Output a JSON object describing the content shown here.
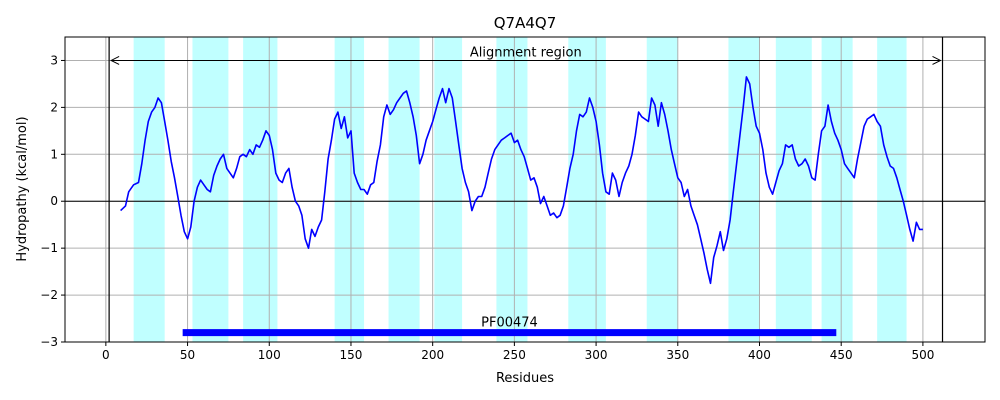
{
  "chart_data": {
    "type": "line",
    "title": "Q7A4Q7",
    "xlabel": "Residues",
    "ylabel": "Hydropathy (kcal/mol)",
    "xlim": [
      -25,
      538
    ],
    "ylim": [
      -3,
      3.5
    ],
    "xticks": [
      0,
      50,
      100,
      150,
      200,
      250,
      300,
      350,
      400,
      450,
      500
    ],
    "yticks": [
      -3,
      -2,
      -1,
      0,
      1,
      2,
      3
    ],
    "grid": true,
    "colors": {
      "line": "#0000ff",
      "tm_band": "#c0ffff",
      "domain_bar": "#0000ff",
      "grid": "#b0b0b0",
      "axis": "#000000"
    },
    "transmembrane_regions": [
      [
        17,
        36
      ],
      [
        53,
        75
      ],
      [
        84,
        105
      ],
      [
        140,
        158
      ],
      [
        173,
        192
      ],
      [
        201,
        218
      ],
      [
        239,
        258
      ],
      [
        283,
        306
      ],
      [
        331,
        350
      ],
      [
        381,
        400
      ],
      [
        410,
        432
      ],
      [
        438,
        457
      ],
      [
        472,
        490
      ]
    ],
    "alignment_region": {
      "label": "Alignment region",
      "start": 2,
      "end": 512
    },
    "domain": {
      "label": "PF00474",
      "start": 47,
      "end": 447,
      "y": -2.8
    },
    "series": [
      {
        "points": [
          [
            9,
            -0.2
          ],
          [
            12,
            -0.1
          ],
          [
            14,
            0.2
          ],
          [
            17,
            0.35
          ],
          [
            20,
            0.4
          ],
          [
            22,
            0.8
          ],
          [
            24,
            1.3
          ],
          [
            26,
            1.7
          ],
          [
            28,
            1.9
          ],
          [
            30,
            2.0
          ],
          [
            32,
            2.2
          ],
          [
            34,
            2.1
          ],
          [
            36,
            1.7
          ],
          [
            38,
            1.3
          ],
          [
            40,
            0.85
          ],
          [
            42,
            0.5
          ],
          [
            44,
            0.1
          ],
          [
            46,
            -0.3
          ],
          [
            48,
            -0.65
          ],
          [
            50,
            -0.8
          ],
          [
            52,
            -0.55
          ],
          [
            54,
            0.0
          ],
          [
            56,
            0.3
          ],
          [
            58,
            0.45
          ],
          [
            60,
            0.35
          ],
          [
            62,
            0.25
          ],
          [
            64,
            0.2
          ],
          [
            66,
            0.55
          ],
          [
            68,
            0.75
          ],
          [
            70,
            0.9
          ],
          [
            72,
            1.0
          ],
          [
            74,
            0.7
          ],
          [
            76,
            0.6
          ],
          [
            78,
            0.5
          ],
          [
            80,
            0.7
          ],
          [
            82,
            0.95
          ],
          [
            84,
            1.0
          ],
          [
            86,
            0.95
          ],
          [
            88,
            1.1
          ],
          [
            90,
            1.0
          ],
          [
            92,
            1.2
          ],
          [
            94,
            1.15
          ],
          [
            96,
            1.3
          ],
          [
            98,
            1.5
          ],
          [
            100,
            1.4
          ],
          [
            102,
            1.1
          ],
          [
            104,
            0.6
          ],
          [
            106,
            0.45
          ],
          [
            108,
            0.4
          ],
          [
            110,
            0.6
          ],
          [
            112,
            0.7
          ],
          [
            114,
            0.3
          ],
          [
            116,
            0.0
          ],
          [
            118,
            -0.1
          ],
          [
            120,
            -0.3
          ],
          [
            122,
            -0.8
          ],
          [
            124,
            -1.0
          ],
          [
            126,
            -0.6
          ],
          [
            128,
            -0.75
          ],
          [
            130,
            -0.55
          ],
          [
            132,
            -0.4
          ],
          [
            134,
            0.2
          ],
          [
            136,
            0.9
          ],
          [
            138,
            1.3
          ],
          [
            140,
            1.75
          ],
          [
            142,
            1.9
          ],
          [
            144,
            1.55
          ],
          [
            146,
            1.8
          ],
          [
            148,
            1.35
          ],
          [
            150,
            1.5
          ],
          [
            152,
            0.6
          ],
          [
            154,
            0.4
          ],
          [
            156,
            0.25
          ],
          [
            158,
            0.25
          ],
          [
            160,
            0.15
          ],
          [
            162,
            0.35
          ],
          [
            164,
            0.4
          ],
          [
            166,
            0.85
          ],
          [
            168,
            1.2
          ],
          [
            170,
            1.8
          ],
          [
            172,
            2.05
          ],
          [
            174,
            1.85
          ],
          [
            176,
            1.95
          ],
          [
            178,
            2.1
          ],
          [
            180,
            2.2
          ],
          [
            182,
            2.3
          ],
          [
            184,
            2.35
          ],
          [
            186,
            2.1
          ],
          [
            188,
            1.8
          ],
          [
            190,
            1.4
          ],
          [
            192,
            0.8
          ],
          [
            194,
            1.0
          ],
          [
            196,
            1.3
          ],
          [
            198,
            1.5
          ],
          [
            200,
            1.7
          ],
          [
            202,
            1.95
          ],
          [
            204,
            2.2
          ],
          [
            206,
            2.4
          ],
          [
            208,
            2.1
          ],
          [
            210,
            2.4
          ],
          [
            212,
            2.2
          ],
          [
            214,
            1.7
          ],
          [
            216,
            1.2
          ],
          [
            218,
            0.7
          ],
          [
            220,
            0.4
          ],
          [
            222,
            0.2
          ],
          [
            224,
            -0.2
          ],
          [
            226,
            0.0
          ],
          [
            228,
            0.1
          ],
          [
            230,
            0.1
          ],
          [
            232,
            0.3
          ],
          [
            234,
            0.6
          ],
          [
            236,
            0.9
          ],
          [
            238,
            1.1
          ],
          [
            240,
            1.2
          ],
          [
            242,
            1.3
          ],
          [
            244,
            1.35
          ],
          [
            246,
            1.4
          ],
          [
            248,
            1.45
          ],
          [
            250,
            1.25
          ],
          [
            252,
            1.3
          ],
          [
            254,
            1.1
          ],
          [
            256,
            0.95
          ],
          [
            258,
            0.7
          ],
          [
            260,
            0.45
          ],
          [
            262,
            0.5
          ],
          [
            264,
            0.3
          ],
          [
            266,
            -0.05
          ],
          [
            268,
            0.1
          ],
          [
            270,
            -0.1
          ],
          [
            272,
            -0.3
          ],
          [
            274,
            -0.25
          ],
          [
            276,
            -0.35
          ],
          [
            278,
            -0.3
          ],
          [
            280,
            -0.1
          ],
          [
            282,
            0.3
          ],
          [
            284,
            0.7
          ],
          [
            286,
            1.0
          ],
          [
            288,
            1.5
          ],
          [
            290,
            1.85
          ],
          [
            292,
            1.8
          ],
          [
            294,
            1.9
          ],
          [
            296,
            2.2
          ],
          [
            298,
            2.0
          ],
          [
            300,
            1.7
          ],
          [
            302,
            1.2
          ],
          [
            304,
            0.6
          ],
          [
            306,
            0.2
          ],
          [
            308,
            0.15
          ],
          [
            310,
            0.6
          ],
          [
            312,
            0.45
          ],
          [
            314,
            0.1
          ],
          [
            316,
            0.4
          ],
          [
            318,
            0.6
          ],
          [
            320,
            0.75
          ],
          [
            322,
            1.0
          ],
          [
            324,
            1.4
          ],
          [
            326,
            1.9
          ],
          [
            328,
            1.8
          ],
          [
            330,
            1.75
          ],
          [
            332,
            1.7
          ],
          [
            334,
            2.2
          ],
          [
            336,
            2.05
          ],
          [
            338,
            1.6
          ],
          [
            340,
            2.1
          ],
          [
            342,
            1.85
          ],
          [
            344,
            1.5
          ],
          [
            346,
            1.1
          ],
          [
            348,
            0.8
          ],
          [
            350,
            0.5
          ],
          [
            352,
            0.4
          ],
          [
            354,
            0.1
          ],
          [
            356,
            0.25
          ],
          [
            358,
            -0.1
          ],
          [
            360,
            -0.3
          ],
          [
            362,
            -0.5
          ],
          [
            364,
            -0.8
          ],
          [
            366,
            -1.1
          ],
          [
            368,
            -1.45
          ],
          [
            370,
            -1.75
          ],
          [
            372,
            -1.2
          ],
          [
            374,
            -0.95
          ],
          [
            376,
            -0.65
          ],
          [
            378,
            -1.05
          ],
          [
            380,
            -0.8
          ],
          [
            382,
            -0.4
          ],
          [
            384,
            0.2
          ],
          [
            386,
            0.8
          ],
          [
            388,
            1.4
          ],
          [
            390,
            2.0
          ],
          [
            392,
            2.65
          ],
          [
            394,
            2.5
          ],
          [
            396,
            2.0
          ],
          [
            398,
            1.6
          ],
          [
            400,
            1.45
          ],
          [
            402,
            1.1
          ],
          [
            404,
            0.6
          ],
          [
            406,
            0.3
          ],
          [
            408,
            0.15
          ],
          [
            410,
            0.4
          ],
          [
            412,
            0.65
          ],
          [
            414,
            0.8
          ],
          [
            416,
            1.2
          ],
          [
            418,
            1.15
          ],
          [
            420,
            1.2
          ],
          [
            422,
            0.9
          ],
          [
            424,
            0.75
          ],
          [
            426,
            0.8
          ],
          [
            428,
            0.9
          ],
          [
            430,
            0.75
          ],
          [
            432,
            0.5
          ],
          [
            434,
            0.45
          ],
          [
            436,
            1.0
          ],
          [
            438,
            1.5
          ],
          [
            440,
            1.6
          ],
          [
            442,
            2.05
          ],
          [
            444,
            1.7
          ],
          [
            446,
            1.45
          ],
          [
            448,
            1.3
          ],
          [
            450,
            1.1
          ],
          [
            452,
            0.8
          ],
          [
            454,
            0.7
          ],
          [
            456,
            0.6
          ],
          [
            458,
            0.5
          ],
          [
            460,
            0.9
          ],
          [
            462,
            1.25
          ],
          [
            464,
            1.6
          ],
          [
            466,
            1.75
          ],
          [
            468,
            1.8
          ],
          [
            470,
            1.85
          ],
          [
            472,
            1.7
          ],
          [
            474,
            1.6
          ],
          [
            476,
            1.2
          ],
          [
            478,
            0.95
          ],
          [
            480,
            0.75
          ],
          [
            482,
            0.7
          ],
          [
            484,
            0.5
          ],
          [
            486,
            0.25
          ],
          [
            488,
            0.0
          ],
          [
            490,
            -0.3
          ],
          [
            492,
            -0.6
          ],
          [
            494,
            -0.85
          ],
          [
            496,
            -0.45
          ],
          [
            498,
            -0.6
          ],
          [
            500,
            -0.6
          ]
        ]
      }
    ]
  }
}
